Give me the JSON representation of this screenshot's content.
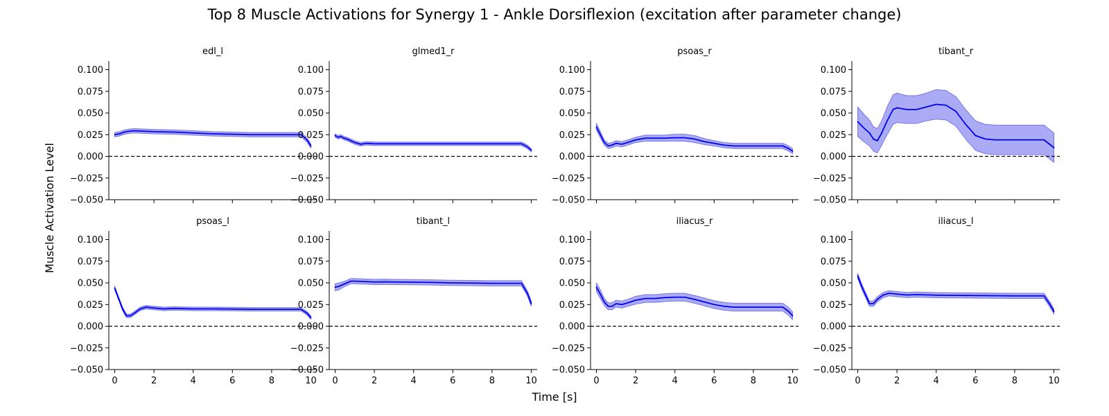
{
  "figure": {
    "title": "Top 8 Muscle Activations for Synergy 1 - Ankle Dorsiflexion (excitation after parameter change)",
    "xlabel": "Time [s]",
    "ylabel": "Muscle Activation Level"
  },
  "chart_data": {
    "type": "line",
    "layout": {
      "rows": 2,
      "cols": 4,
      "sharex": true,
      "sharey": true
    },
    "xlim": [
      -0.3,
      10.3
    ],
    "ylim": [
      -0.05,
      0.11
    ],
    "xticks": [
      0,
      2,
      4,
      6,
      8,
      10
    ],
    "xtick_labels": [
      "0",
      "2",
      "4",
      "6",
      "8",
      "10"
    ],
    "yticks": [
      -0.05,
      -0.025,
      0.0,
      0.025,
      0.05,
      0.075,
      0.1
    ],
    "ytick_labels": [
      "−0.050",
      "−0.025",
      "0.000",
      "0.025",
      "0.050",
      "0.075",
      "0.100"
    ],
    "reference_line": {
      "y": 0,
      "style": "dashed",
      "color": "#000000"
    },
    "line_color": "#0000ee",
    "band_color": "#aaaaf5",
    "band_edge_color": "#7777e8",
    "panels": [
      {
        "title": "edl_l",
        "x": [
          0,
          0.25,
          0.5,
          0.75,
          1,
          1.5,
          2,
          3,
          4,
          5,
          6,
          7,
          8,
          9,
          9.5,
          9.8,
          10
        ],
        "mean": [
          0.025,
          0.026,
          0.028,
          0.029,
          0.0295,
          0.029,
          0.0285,
          0.028,
          0.027,
          0.026,
          0.0255,
          0.025,
          0.025,
          0.025,
          0.025,
          0.019,
          0.012
        ],
        "band": [
          0.0025,
          0.0025,
          0.0025,
          0.0025,
          0.0025,
          0.0025,
          0.0025,
          0.0025,
          0.0025,
          0.0025,
          0.0025,
          0.0025,
          0.0025,
          0.0025,
          0.0025,
          0.0025,
          0.0025
        ]
      },
      {
        "title": "glmed1_r",
        "x": [
          0,
          0.15,
          0.3,
          0.45,
          0.6,
          0.8,
          1,
          1.3,
          1.6,
          2,
          3,
          4,
          5,
          6,
          7,
          8,
          9,
          9.5,
          9.8,
          10
        ],
        "mean": [
          0.024,
          0.022,
          0.023,
          0.021,
          0.02,
          0.018,
          0.016,
          0.014,
          0.015,
          0.0145,
          0.0145,
          0.0145,
          0.0145,
          0.0145,
          0.0145,
          0.0145,
          0.0145,
          0.0145,
          0.011,
          0.007
        ],
        "band": [
          0.002,
          0.002,
          0.002,
          0.002,
          0.002,
          0.002,
          0.002,
          0.002,
          0.002,
          0.002,
          0.002,
          0.002,
          0.002,
          0.002,
          0.002,
          0.002,
          0.002,
          0.002,
          0.002,
          0.002
        ]
      },
      {
        "title": "psoas_r",
        "x": [
          0,
          0.2,
          0.4,
          0.6,
          0.8,
          1,
          1.3,
          1.6,
          2,
          2.5,
          3,
          3.5,
          4,
          4.5,
          5,
          5.5,
          6,
          6.5,
          7,
          8,
          9,
          9.5,
          9.8,
          10
        ],
        "mean": [
          0.034,
          0.025,
          0.016,
          0.012,
          0.013,
          0.015,
          0.014,
          0.016,
          0.019,
          0.021,
          0.021,
          0.021,
          0.0215,
          0.0215,
          0.02,
          0.017,
          0.015,
          0.013,
          0.012,
          0.012,
          0.012,
          0.012,
          0.009,
          0.006
        ],
        "band": [
          0.004,
          0.0035,
          0.003,
          0.003,
          0.003,
          0.003,
          0.003,
          0.003,
          0.003,
          0.0035,
          0.0035,
          0.0035,
          0.004,
          0.004,
          0.004,
          0.0035,
          0.003,
          0.003,
          0.003,
          0.003,
          0.003,
          0.003,
          0.003,
          0.003
        ]
      },
      {
        "title": "tibant_r",
        "x": [
          0,
          0.3,
          0.6,
          0.8,
          1,
          1.2,
          1.5,
          1.8,
          2,
          2.5,
          3,
          3.5,
          4,
          4.5,
          5,
          5.5,
          6,
          6.5,
          7,
          8,
          9,
          9.5,
          10
        ],
        "mean": [
          0.04,
          0.033,
          0.027,
          0.02,
          0.018,
          0.026,
          0.041,
          0.054,
          0.056,
          0.054,
          0.054,
          0.057,
          0.06,
          0.059,
          0.052,
          0.037,
          0.024,
          0.02,
          0.019,
          0.019,
          0.019,
          0.019,
          0.01
        ],
        "band": [
          0.017,
          0.016,
          0.015,
          0.014,
          0.014,
          0.014,
          0.016,
          0.017,
          0.017,
          0.016,
          0.016,
          0.016,
          0.017,
          0.017,
          0.017,
          0.017,
          0.017,
          0.017,
          0.017,
          0.017,
          0.017,
          0.017,
          0.017
        ]
      },
      {
        "title": "psoas_l",
        "x": [
          0,
          0.2,
          0.4,
          0.6,
          0.8,
          1,
          1.3,
          1.6,
          2,
          2.5,
          3,
          4,
          5,
          6,
          7,
          8,
          9,
          9.5,
          9.8,
          10
        ],
        "mean": [
          0.044,
          0.032,
          0.02,
          0.012,
          0.012,
          0.015,
          0.02,
          0.022,
          0.021,
          0.02,
          0.0205,
          0.02,
          0.02,
          0.0198,
          0.0195,
          0.0195,
          0.0195,
          0.0195,
          0.015,
          0.01
        ],
        "band": [
          0.002,
          0.002,
          0.002,
          0.002,
          0.002,
          0.002,
          0.002,
          0.002,
          0.002,
          0.002,
          0.002,
          0.002,
          0.002,
          0.002,
          0.002,
          0.002,
          0.002,
          0.002,
          0.002,
          0.002
        ]
      },
      {
        "title": "tibant_l",
        "x": [
          0,
          0.2,
          0.5,
          0.8,
          1,
          1.5,
          2,
          2.5,
          3,
          4,
          5,
          6,
          7,
          8,
          9,
          9.5,
          9.8,
          10
        ],
        "mean": [
          0.045,
          0.046,
          0.049,
          0.052,
          0.052,
          0.0515,
          0.051,
          0.0512,
          0.051,
          0.0508,
          0.0505,
          0.05,
          0.0498,
          0.0495,
          0.0495,
          0.0495,
          0.038,
          0.026
        ],
        "band": [
          0.004,
          0.004,
          0.003,
          0.003,
          0.003,
          0.003,
          0.003,
          0.003,
          0.003,
          0.003,
          0.003,
          0.003,
          0.003,
          0.003,
          0.003,
          0.003,
          0.003,
          0.003
        ]
      },
      {
        "title": "iliacus_r",
        "x": [
          0,
          0.2,
          0.4,
          0.6,
          0.8,
          1,
          1.3,
          1.6,
          2,
          2.5,
          3,
          3.5,
          4,
          4.5,
          5,
          5.5,
          6,
          6.5,
          7,
          8,
          9,
          9.5,
          9.8,
          10
        ],
        "mean": [
          0.045,
          0.037,
          0.028,
          0.023,
          0.023,
          0.026,
          0.025,
          0.027,
          0.03,
          0.032,
          0.032,
          0.033,
          0.0335,
          0.0335,
          0.031,
          0.028,
          0.025,
          0.023,
          0.022,
          0.022,
          0.022,
          0.022,
          0.017,
          0.012
        ],
        "band": [
          0.005,
          0.005,
          0.004,
          0.004,
          0.004,
          0.004,
          0.004,
          0.004,
          0.0045,
          0.0045,
          0.0045,
          0.0045,
          0.0045,
          0.0045,
          0.0045,
          0.0045,
          0.0045,
          0.0045,
          0.0045,
          0.0045,
          0.0045,
          0.0045,
          0.0045,
          0.0045
        ]
      },
      {
        "title": "iliacus_l",
        "x": [
          0,
          0.2,
          0.4,
          0.6,
          0.8,
          1,
          1.3,
          1.6,
          2,
          2.5,
          3,
          4,
          5,
          6,
          7,
          8,
          9,
          9.5,
          9.8,
          10
        ],
        "mean": [
          0.058,
          0.046,
          0.036,
          0.026,
          0.026,
          0.031,
          0.036,
          0.038,
          0.037,
          0.036,
          0.0365,
          0.0358,
          0.0356,
          0.0354,
          0.0352,
          0.035,
          0.035,
          0.035,
          0.025,
          0.017
        ],
        "band": [
          0.003,
          0.003,
          0.003,
          0.003,
          0.003,
          0.003,
          0.003,
          0.003,
          0.003,
          0.003,
          0.003,
          0.003,
          0.003,
          0.003,
          0.003,
          0.003,
          0.003,
          0.003,
          0.003,
          0.003
        ]
      }
    ]
  }
}
